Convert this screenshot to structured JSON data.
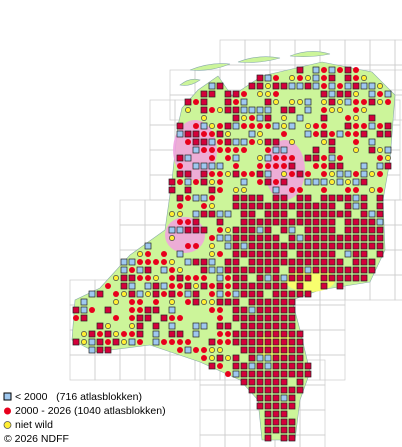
{
  "legend": [
    {
      "label": "< 2000   (716 atlasblokken)"
    },
    {
      "label": "2000 - 2026 (1040 atlasblokken)"
    },
    {
      "label": "niet wild"
    }
  ],
  "copyright": "© 2026 NDFF"
}
